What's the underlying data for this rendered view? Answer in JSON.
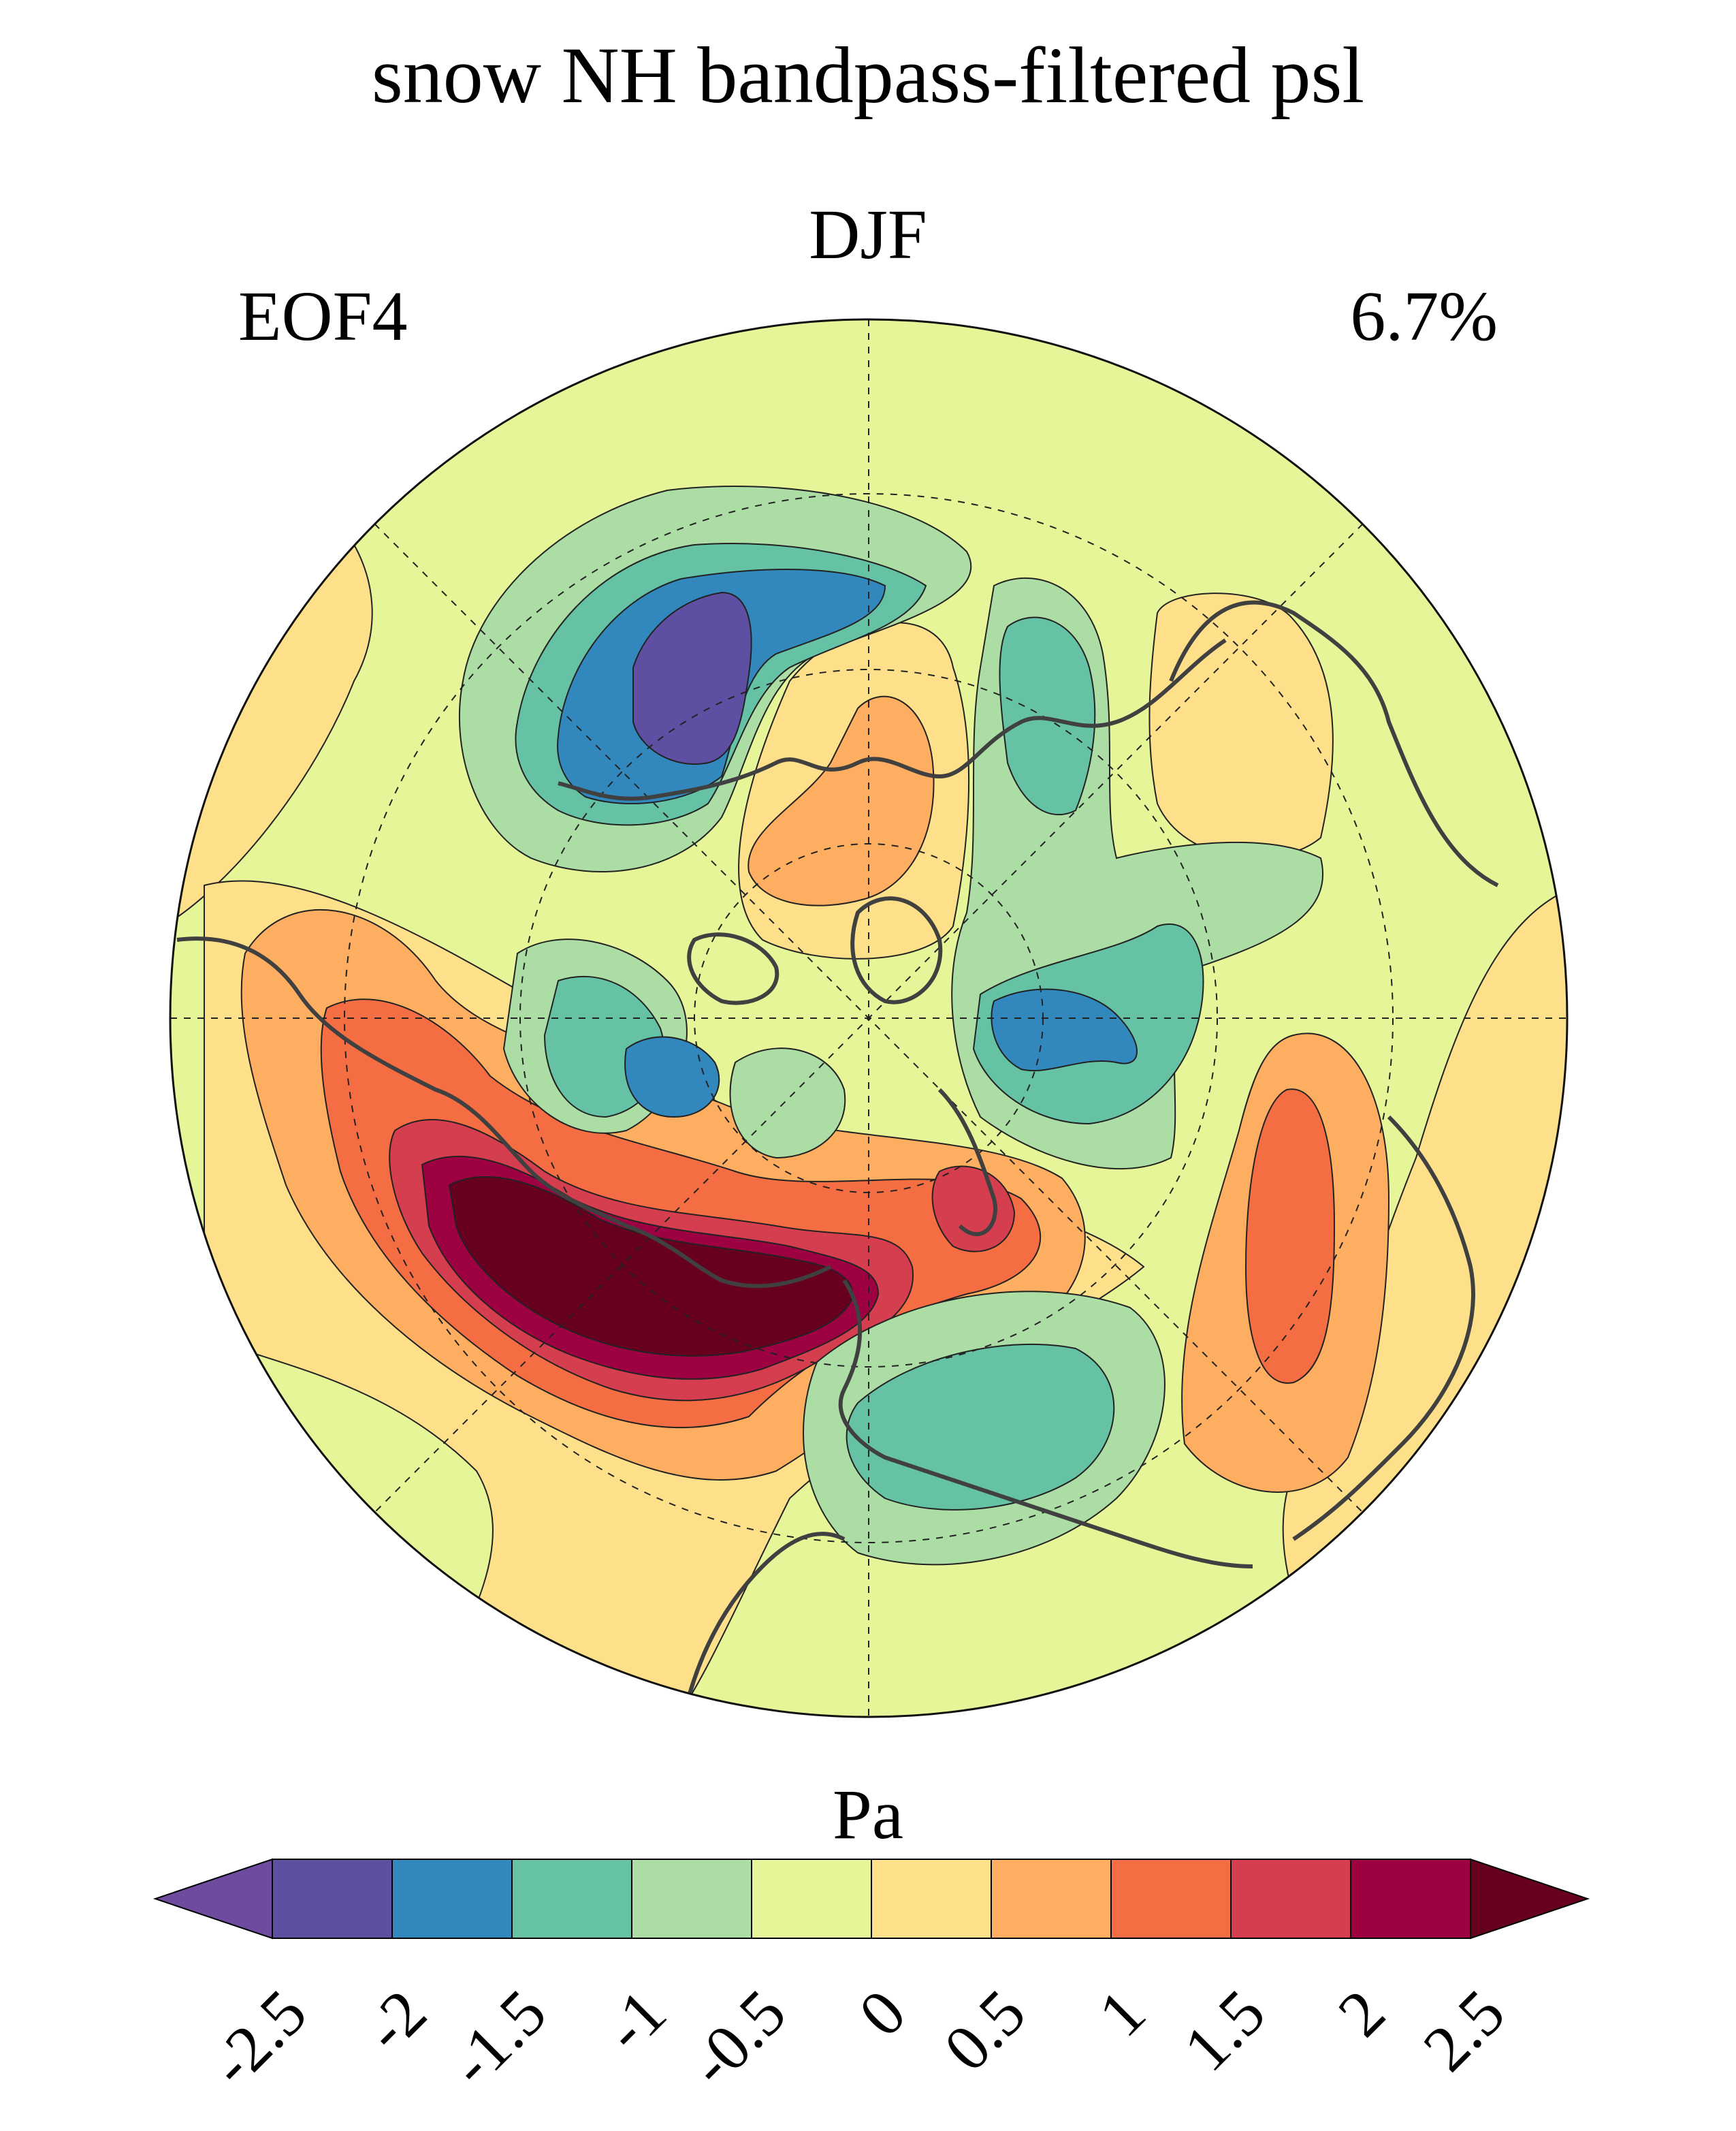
{
  "header": {
    "title": "snow NH bandpass-filtered psl",
    "season": "DJF",
    "mode": "EOF4",
    "variance": "6.7%"
  },
  "map": {
    "projection": "north-polar-stereographic",
    "field": "psl EOF pattern",
    "palette": [
      "#5e4fa2",
      "#3288bd",
      "#66c2a5",
      "#abdda4",
      "#e6f598",
      "#fee08b",
      "#fdae61",
      "#f46d43",
      "#d53e4f",
      "#9e0142",
      "#67001f"
    ],
    "background_color": "#e6f598",
    "coastline_color": "#404040"
  },
  "colorbar": {
    "label": "Pa",
    "min_color": "#6e4b9e",
    "max_color": "#67001f",
    "colors": [
      "#5e4fa2",
      "#3288bd",
      "#66c2a5",
      "#abdda4",
      "#e6f598",
      "#fee08b",
      "#fdae61",
      "#f46d43",
      "#d53e4f",
      "#9e0142"
    ],
    "ticks": [
      "-2.5",
      "-2",
      "-1.5",
      "-1",
      "-0.5",
      "0",
      "0.5",
      "1",
      "1.5",
      "2",
      "2.5"
    ]
  }
}
